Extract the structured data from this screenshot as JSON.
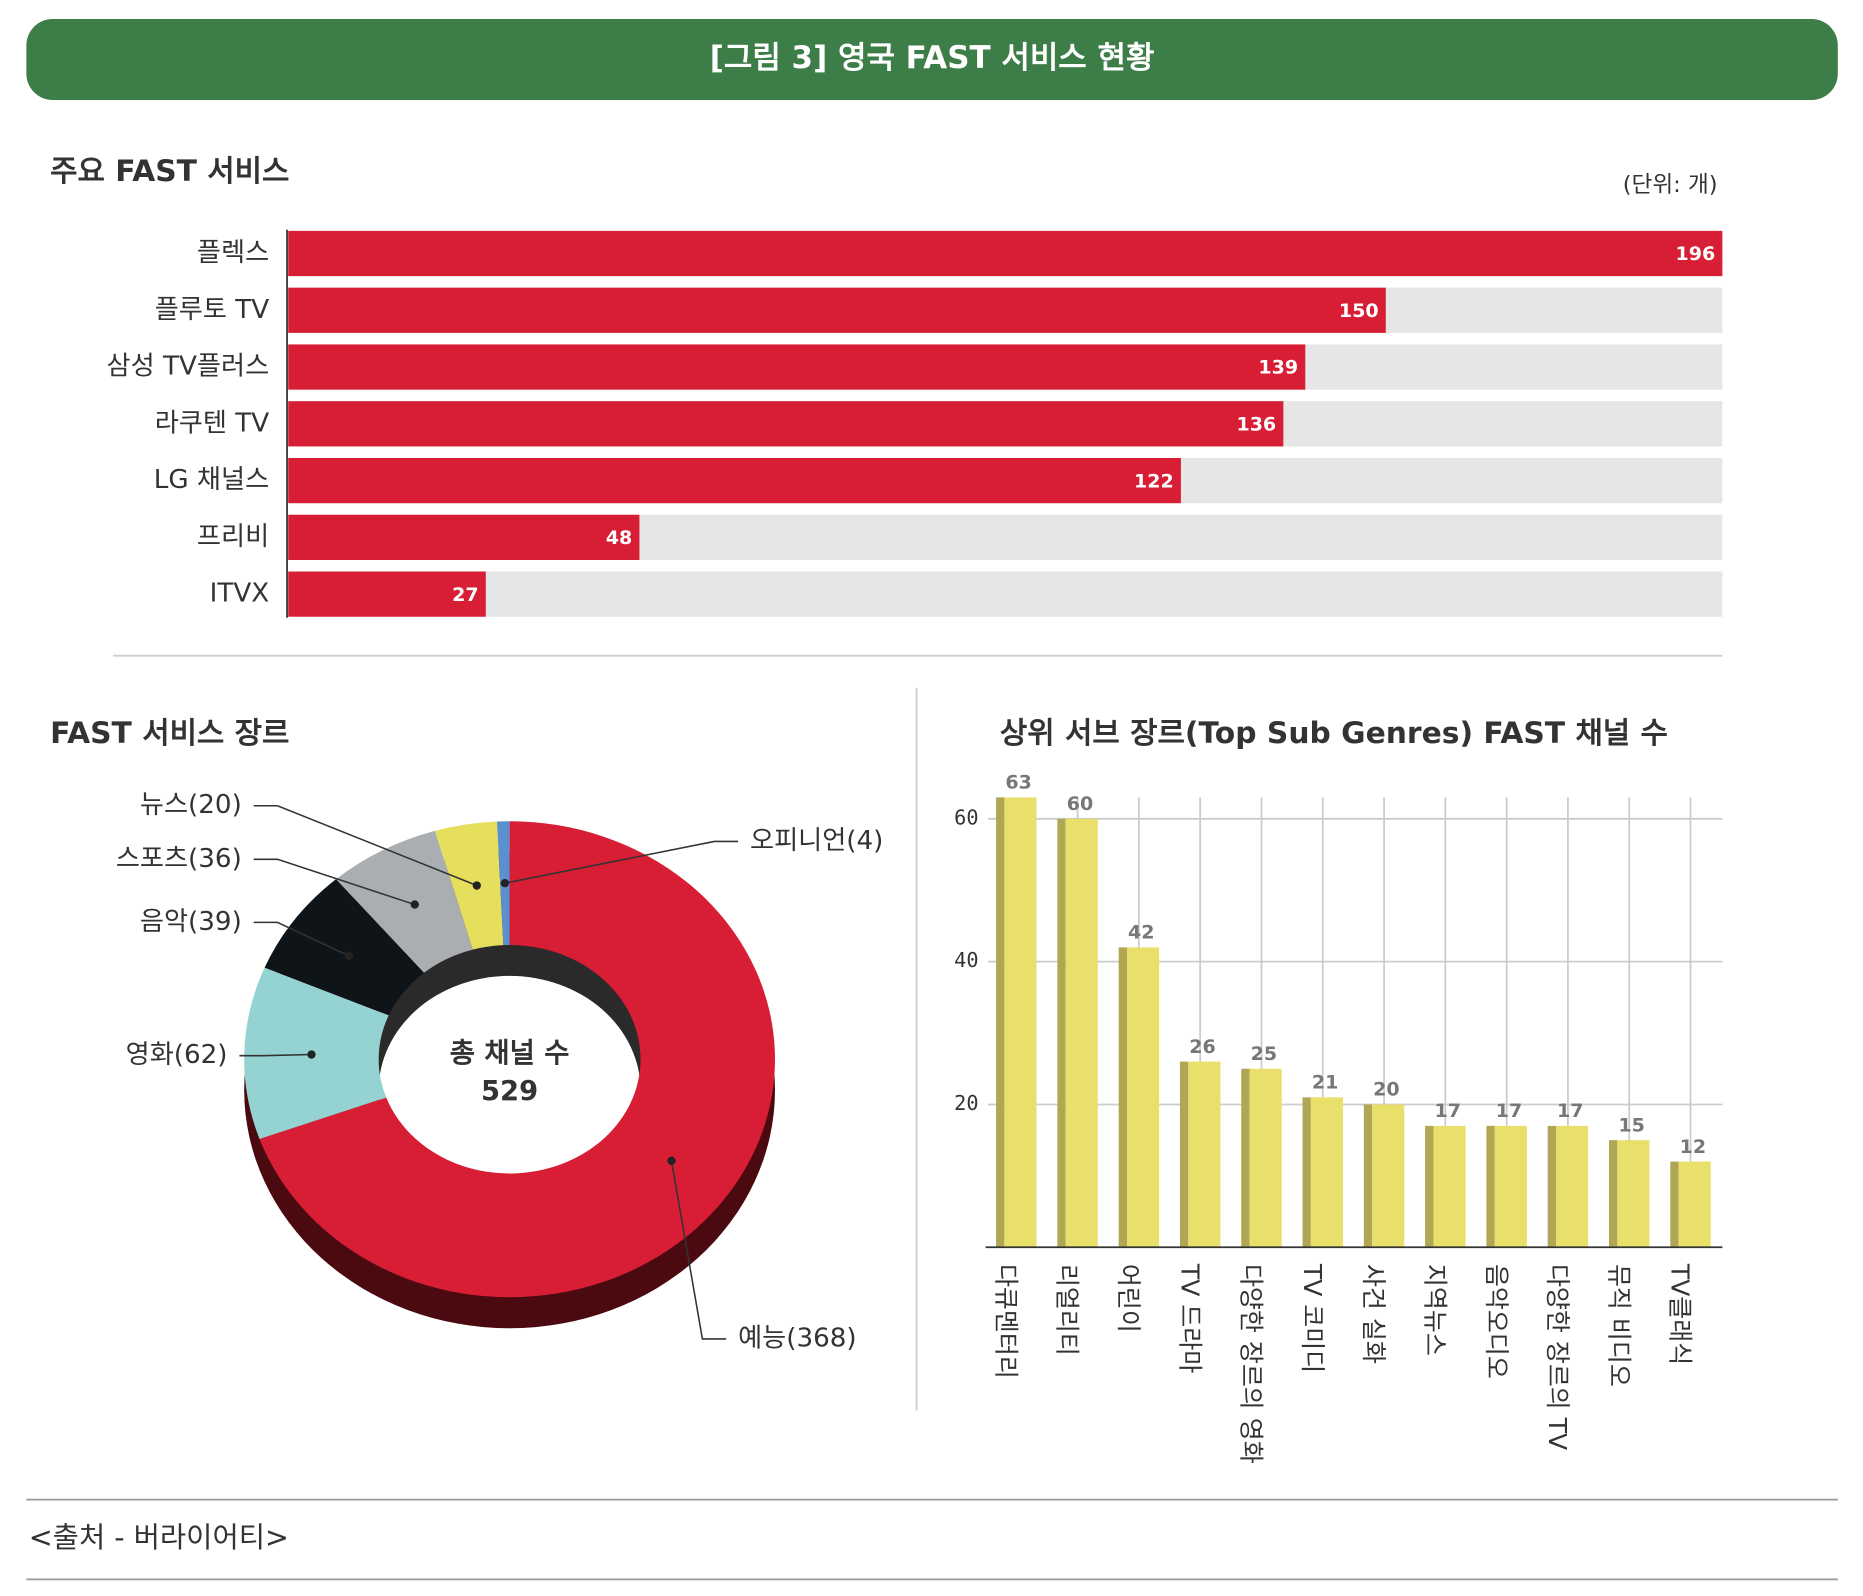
{
  "title": "[그림 3] 영국 FAST 서비스 현황",
  "source": "<출처 - 버라이어티>",
  "chart_data": [
    {
      "type": "hbar",
      "title": "주요 FAST 서비스",
      "unit": "(단위: 개)",
      "categories": [
        "플렉스",
        "플루토 TV",
        "삼성 TV플러스",
        "라쿠텐 TV",
        "LG 채널스",
        "프리비",
        "ITVX"
      ],
      "values": [
        196,
        150,
        139,
        136,
        122,
        48,
        27
      ],
      "color": "#d81e34",
      "track_color": "#e6e6e6"
    },
    {
      "type": "donut",
      "title": "FAST 서비스 장르",
      "values": [
        368,
        62,
        39,
        36,
        20,
        4
      ],
      "value_labels": [
        "예능(368)",
        "영화(62)",
        "음악(39)",
        "스포츠(36)",
        "뉴스(20)",
        "오피니언(4)"
      ],
      "colors": [
        "#d81e34",
        "#94d3d1",
        "#0e1417",
        "#a9aeb3",
        "#e6df5e",
        "#5a8fd0"
      ],
      "center_label": "총 채널 수",
      "total": 529
    },
    {
      "type": "bar",
      "title": "상위 서브 장르(Top Sub Genres) FAST 채널 수",
      "categories": [
        "다큐멘터리",
        "리얼리티",
        "어린이",
        "TV 드라마",
        "다양한 장르의 영화",
        "TV 코미디",
        "사건 실화",
        "지역뉴스",
        "음악오디오",
        "다양한 장르의 TV",
        "뮤직 비디오",
        "TV클래식"
      ],
      "values": [
        63,
        60,
        42,
        26,
        25,
        21,
        20,
        17,
        17,
        17,
        15,
        12
      ],
      "color": "#e8e06a",
      "side_color": "#b0a654",
      "ylim": [
        0,
        65
      ],
      "yticks": [
        20,
        40,
        60
      ],
      "grid": true
    }
  ]
}
